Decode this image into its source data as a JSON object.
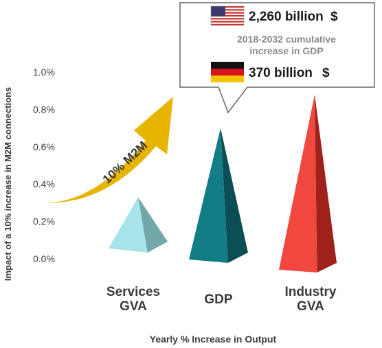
{
  "chart_data": {
    "type": "bar",
    "categories": [
      {
        "line1": "Services",
        "line2": "GVA"
      },
      {
        "line1": "GDP",
        "line2": ""
      },
      {
        "line1": "Industry",
        "line2": "GVA"
      }
    ],
    "values": [
      0.33,
      0.7,
      0.88
    ],
    "ylim": [
      0,
      1.0
    ],
    "yticks": [
      "0.0%",
      "0.2%",
      "0.4%",
      "0.6%",
      "0.8%",
      "1.0%"
    ],
    "ylabel": "Impact of a 10% increase in M2M connections",
    "xlabel": "Yearly % Increase in Output",
    "grid": false,
    "colors": [
      {
        "front": "#a6e4ea",
        "side": "#74a7aa"
      },
      {
        "front": "#137d86",
        "side": "#0c4e55"
      },
      {
        "front": "#f0483f",
        "side": "#a0211c"
      }
    ],
    "arrow": {
      "label": "10% M2M",
      "color": "#e7b400"
    },
    "callout": {
      "us_amount": "2,260 billion",
      "de_amount": "370 billion",
      "currency": "$",
      "note_line1": "2018-2032 cumulative",
      "note_line2": "increase in GDP"
    },
    "flags": [
      "us-flag-icon",
      "germany-flag-icon"
    ]
  }
}
